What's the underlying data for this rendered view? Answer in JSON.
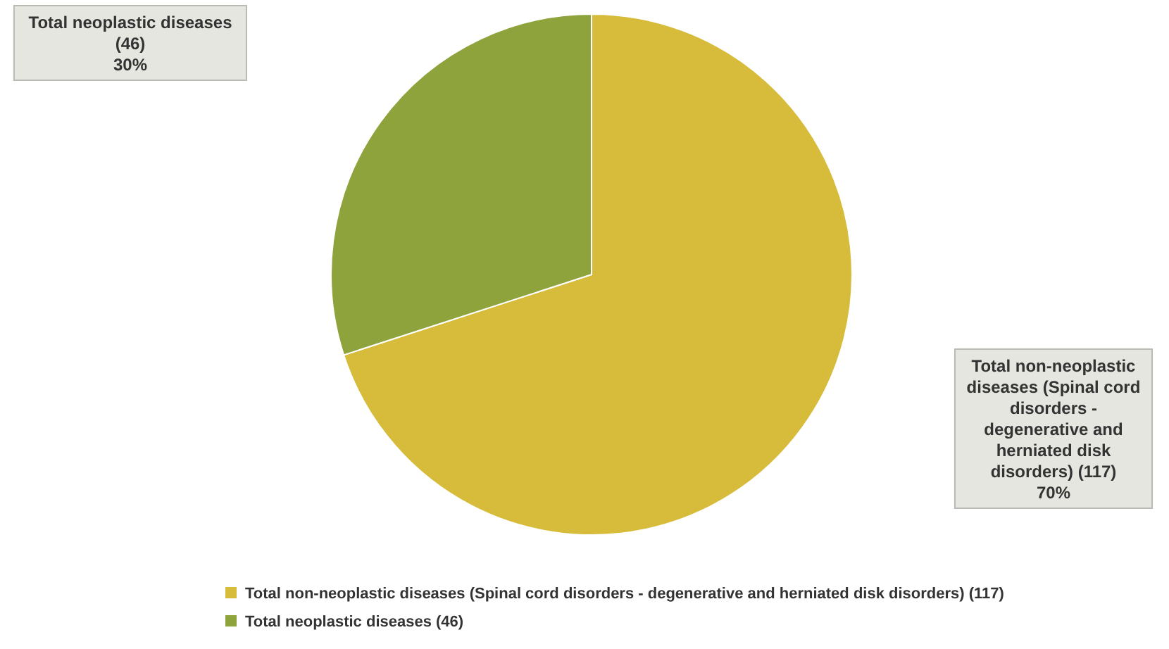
{
  "chart_data": {
    "type": "pie",
    "categories": [
      "Total non-neoplastic diseases (Spinal cord disorders - degenerative and herniated disk disorders) (117)",
      "Total neoplastic diseases (46)"
    ],
    "values": [
      70,
      30
    ],
    "colors": [
      "#d6bc3a",
      "#8ea33b"
    ],
    "value_labels": [
      "70%",
      "30%"
    ],
    "legend": "bottom left"
  }
}
